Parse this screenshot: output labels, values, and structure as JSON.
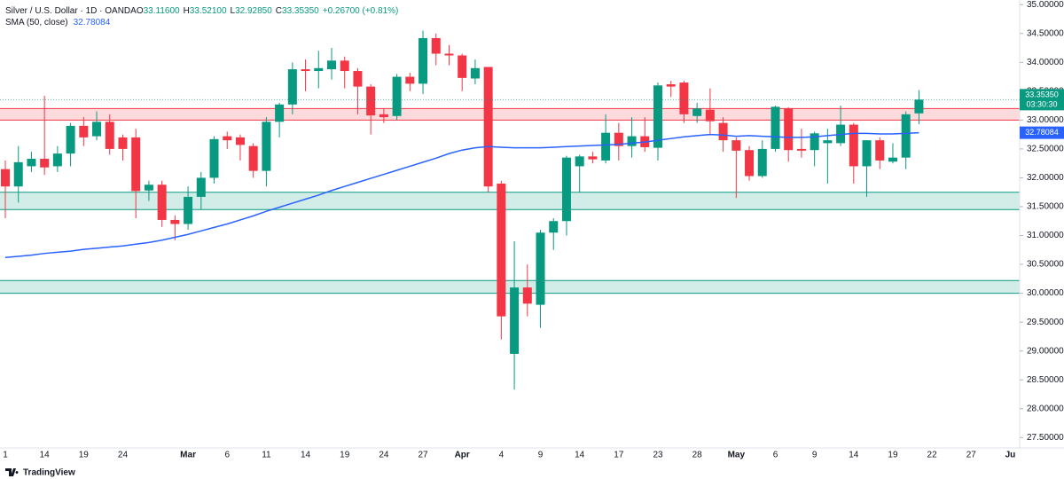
{
  "header": {
    "title": "Silver / U.S. Dollar · 1D · OANDA",
    "legend": [
      {
        "label": "O",
        "value": "33.11600"
      },
      {
        "label": "H",
        "value": "33.52100"
      },
      {
        "label": "L",
        "value": "32.92850"
      },
      {
        "label": "C",
        "value": "33.35350"
      }
    ],
    "change": "+0.26700 (+0.81%)",
    "indicator": "SMA (50, close)",
    "indicator_value": "32.78084"
  },
  "badges": {
    "price": "33.35350",
    "countdown": "03:30:30",
    "sma": "32.78084"
  },
  "footer": {
    "brand": "TradingView"
  },
  "chart_data": {
    "type": "candlestick",
    "categories": [
      "1",
      null,
      null,
      "14",
      null,
      null,
      "19",
      null,
      null,
      "24",
      null,
      null,
      null,
      null,
      "Mar",
      null,
      null,
      "6",
      null,
      null,
      "11",
      null,
      null,
      "14",
      null,
      null,
      "19",
      null,
      null,
      "24",
      null,
      null,
      "27",
      null,
      null,
      "Apr",
      null,
      null,
      "4",
      null,
      null,
      "9",
      null,
      null,
      "14",
      null,
      null,
      "17",
      null,
      null,
      "23",
      null,
      null,
      "28",
      null,
      null,
      "May",
      null,
      null,
      "6",
      null,
      null,
      "9",
      null,
      null,
      "14",
      null,
      null,
      "19",
      null,
      null,
      "22",
      null,
      null,
      "27",
      null,
      null,
      "Ju"
    ],
    "month_labels": [
      "Mar",
      "Apr",
      "May",
      "Ju"
    ],
    "open": [
      32.15,
      31.85,
      32.2,
      32.33,
      32.2,
      32.42,
      32.9,
      32.72,
      32.97,
      32.7,
      32.7,
      31.78,
      31.88,
      31.27,
      31.2,
      31.67,
      32.0,
      32.72,
      32.7,
      32.55,
      32.12,
      32.97,
      33.27,
      33.88,
      33.85,
      33.88,
      34.03,
      33.85,
      33.58,
      33.1,
      33.07,
      33.75,
      33.63,
      34.42,
      34.15,
      34.12,
      33.72,
      33.92,
      31.9,
      28.95,
      30.1,
      29.8,
      31.05,
      31.25,
      32.2,
      32.37,
      32.3,
      32.78,
      32.55,
      32.72,
      32.52,
      33.62,
      33.65,
      33.07,
      33.18,
      32.95,
      32.65,
      32.48,
      32.03,
      32.5,
      33.2,
      32.5,
      32.48,
      32.6,
      32.6,
      32.92,
      32.2,
      32.65,
      32.28,
      32.35,
      33.116,
      null,
      null,
      null,
      null,
      null,
      null,
      null
    ],
    "high": [
      32.3,
      32.55,
      32.45,
      33.42,
      32.55,
      32.95,
      33.05,
      33.15,
      33.1,
      32.75,
      32.85,
      31.95,
      31.95,
      31.35,
      31.85,
      32.1,
      32.72,
      32.8,
      32.75,
      32.6,
      33.05,
      33.3,
      34.0,
      34.05,
      34.2,
      34.25,
      34.1,
      33.9,
      33.62,
      33.2,
      33.8,
      33.82,
      34.55,
      34.5,
      34.3,
      34.15,
      34.05,
      33.92,
      31.95,
      30.9,
      30.5,
      31.1,
      31.3,
      32.38,
      32.4,
      32.45,
      33.1,
      32.95,
      33.05,
      33.05,
      33.65,
      33.68,
      33.68,
      33.3,
      33.55,
      33.05,
      32.7,
      32.55,
      32.65,
      33.25,
      33.22,
      32.85,
      32.8,
      32.85,
      33.25,
      32.95,
      32.65,
      32.7,
      32.6,
      33.15,
      33.521,
      null,
      null,
      null,
      null,
      null,
      null,
      null
    ],
    "low": [
      31.3,
      31.57,
      32.1,
      32.05,
      32.1,
      32.2,
      32.55,
      32.65,
      32.4,
      32.3,
      31.3,
      31.6,
      31.15,
      30.92,
      31.1,
      31.45,
      31.9,
      32.5,
      32.3,
      32.0,
      31.85,
      32.7,
      33.1,
      33.5,
      33.55,
      33.7,
      33.55,
      33.1,
      32.75,
      32.95,
      33.0,
      33.5,
      33.45,
      33.95,
      33.95,
      33.5,
      33.62,
      31.75,
      29.2,
      28.33,
      29.6,
      29.4,
      30.75,
      31.0,
      31.75,
      32.25,
      32.25,
      32.3,
      32.35,
      32.45,
      32.3,
      33.4,
      32.95,
      32.95,
      32.75,
      32.45,
      31.65,
      31.95,
      32.0,
      32.45,
      32.28,
      32.35,
      32.2,
      31.9,
      32.55,
      31.9,
      31.67,
      32.15,
      32.25,
      32.15,
      32.9285,
      null,
      null,
      null,
      null,
      null,
      null,
      null
    ],
    "close": [
      31.85,
      32.27,
      32.33,
      32.18,
      32.42,
      32.9,
      32.7,
      32.97,
      32.5,
      32.5,
      31.77,
      31.88,
      31.27,
      31.2,
      31.67,
      32.0,
      32.67,
      32.65,
      32.57,
      32.12,
      32.97,
      33.27,
      33.88,
      33.85,
      33.9,
      34.03,
      33.85,
      33.58,
      33.08,
      33.05,
      33.75,
      33.63,
      34.42,
      34.15,
      34.12,
      33.73,
      33.9,
      31.85,
      29.6,
      30.1,
      29.82,
      31.05,
      31.25,
      32.35,
      32.37,
      32.32,
      32.78,
      32.55,
      32.72,
      32.53,
      33.6,
      33.58,
      33.1,
      33.2,
      32.98,
      32.65,
      32.47,
      32.03,
      32.5,
      33.23,
      32.48,
      32.47,
      32.77,
      32.65,
      32.92,
      32.2,
      32.65,
      32.3,
      32.35,
      33.1,
      33.3535,
      null,
      null,
      null,
      null,
      null,
      null,
      null
    ],
    "up_color": "#089981",
    "down_color": "#f23645",
    "series": [
      {
        "name": "SMA (50, close)",
        "color": "#2962ff",
        "values": [
          30.62,
          30.64,
          30.66,
          30.69,
          30.71,
          30.73,
          30.76,
          30.78,
          30.8,
          30.82,
          30.85,
          30.88,
          30.92,
          30.97,
          31.02,
          31.08,
          31.14,
          31.2,
          31.27,
          31.34,
          31.42,
          31.49,
          31.56,
          31.63,
          31.7,
          31.78,
          31.85,
          31.92,
          31.99,
          32.06,
          32.13,
          32.2,
          32.27,
          32.34,
          32.42,
          32.48,
          32.52,
          32.54,
          32.53,
          32.52,
          32.52,
          32.52,
          32.53,
          32.54,
          32.55,
          32.56,
          32.57,
          32.58,
          32.6,
          32.62,
          32.65,
          32.68,
          32.71,
          32.73,
          32.75,
          32.74,
          32.72,
          32.73,
          32.72,
          32.71,
          32.7,
          32.7,
          32.71,
          32.73,
          32.75,
          32.77,
          32.77,
          32.76,
          32.76,
          32.77,
          32.78084,
          null,
          null,
          null,
          null,
          null,
          null,
          null
        ]
      }
    ],
    "zones": [
      {
        "range": [
          33.0,
          33.2
        ],
        "color": "#f23645"
      },
      {
        "range": [
          31.45,
          31.75
        ],
        "color": "#089981"
      },
      {
        "range": [
          30.0,
          30.22
        ],
        "color": "#089981"
      }
    ],
    "ylim": [
      27.32,
      35.08
    ],
    "yticks": [
      {
        "value": 27.5,
        "label": "27.50000"
      },
      {
        "value": 28.0,
        "label": "28.00000"
      },
      {
        "value": 28.5,
        "label": "28.50000"
      },
      {
        "value": 29.0,
        "label": "29.00000"
      },
      {
        "value": 29.5,
        "label": "29.50000"
      },
      {
        "value": 30.0,
        "label": "30.00000"
      },
      {
        "value": 30.5,
        "label": "30.50000"
      },
      {
        "value": 31.0,
        "label": "31.00000"
      },
      {
        "value": 31.5,
        "label": "31.50000"
      },
      {
        "value": 32.0,
        "label": "32.00000"
      },
      {
        "value": 32.5,
        "label": "32.50000"
      },
      {
        "value": 33.0,
        "label": "33.00000"
      },
      {
        "value": 33.5,
        "label": "33.50000"
      },
      {
        "value": 34.0,
        "label": "34.00000"
      },
      {
        "value": 34.5,
        "label": "34.50000"
      },
      {
        "value": 35.0,
        "label": "35.00000"
      }
    ],
    "grid": false
  }
}
